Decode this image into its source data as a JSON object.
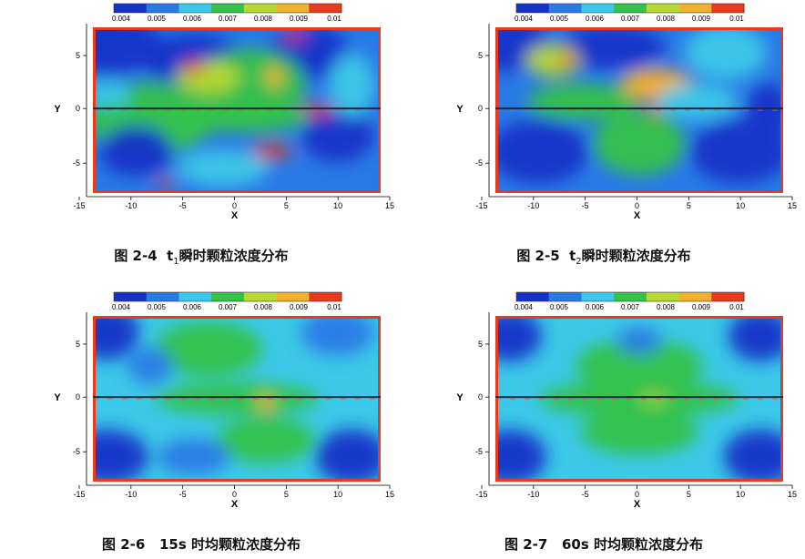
{
  "colorbar": {
    "ticks": [
      "0.004",
      "0.005",
      "0.006",
      "0.007",
      "0.008",
      "0.009",
      "0.01"
    ],
    "colors": [
      "#1431c8",
      "#2a7ae6",
      "#3cc8e8",
      "#33c24a",
      "#b8d832",
      "#f0b030",
      "#e83a1e"
    ]
  },
  "axes": {
    "xlabel": "X",
    "ylabel": "Y",
    "xticks": [
      "-15",
      "-10",
      "-5",
      "0",
      "5",
      "10",
      "15"
    ],
    "yticks": [
      "5",
      "0",
      "-5"
    ]
  },
  "figures": [
    {
      "id": "fig-2-4",
      "caption_prefix": "图 2-4",
      "caption_var": "t",
      "caption_sub": "1",
      "caption_text": "瞬时颗粒浓度分布",
      "mode": "instant-a"
    },
    {
      "id": "fig-2-5",
      "caption_prefix": "图 2-5",
      "caption_var": "t",
      "caption_sub": "2",
      "caption_text": "瞬时颗粒浓度分布",
      "mode": "instant-b"
    },
    {
      "id": "fig-2-6",
      "caption_prefix": "图 2-6",
      "caption_var": "15s",
      "caption_sub": "",
      "caption_text": "时均颗粒浓度分布",
      "mode": "mean-15"
    },
    {
      "id": "fig-2-7",
      "caption_prefix": "图 2-7",
      "caption_var": "60s",
      "caption_sub": "",
      "caption_text": "时均颗粒浓度分布",
      "mode": "mean-60"
    }
  ]
}
